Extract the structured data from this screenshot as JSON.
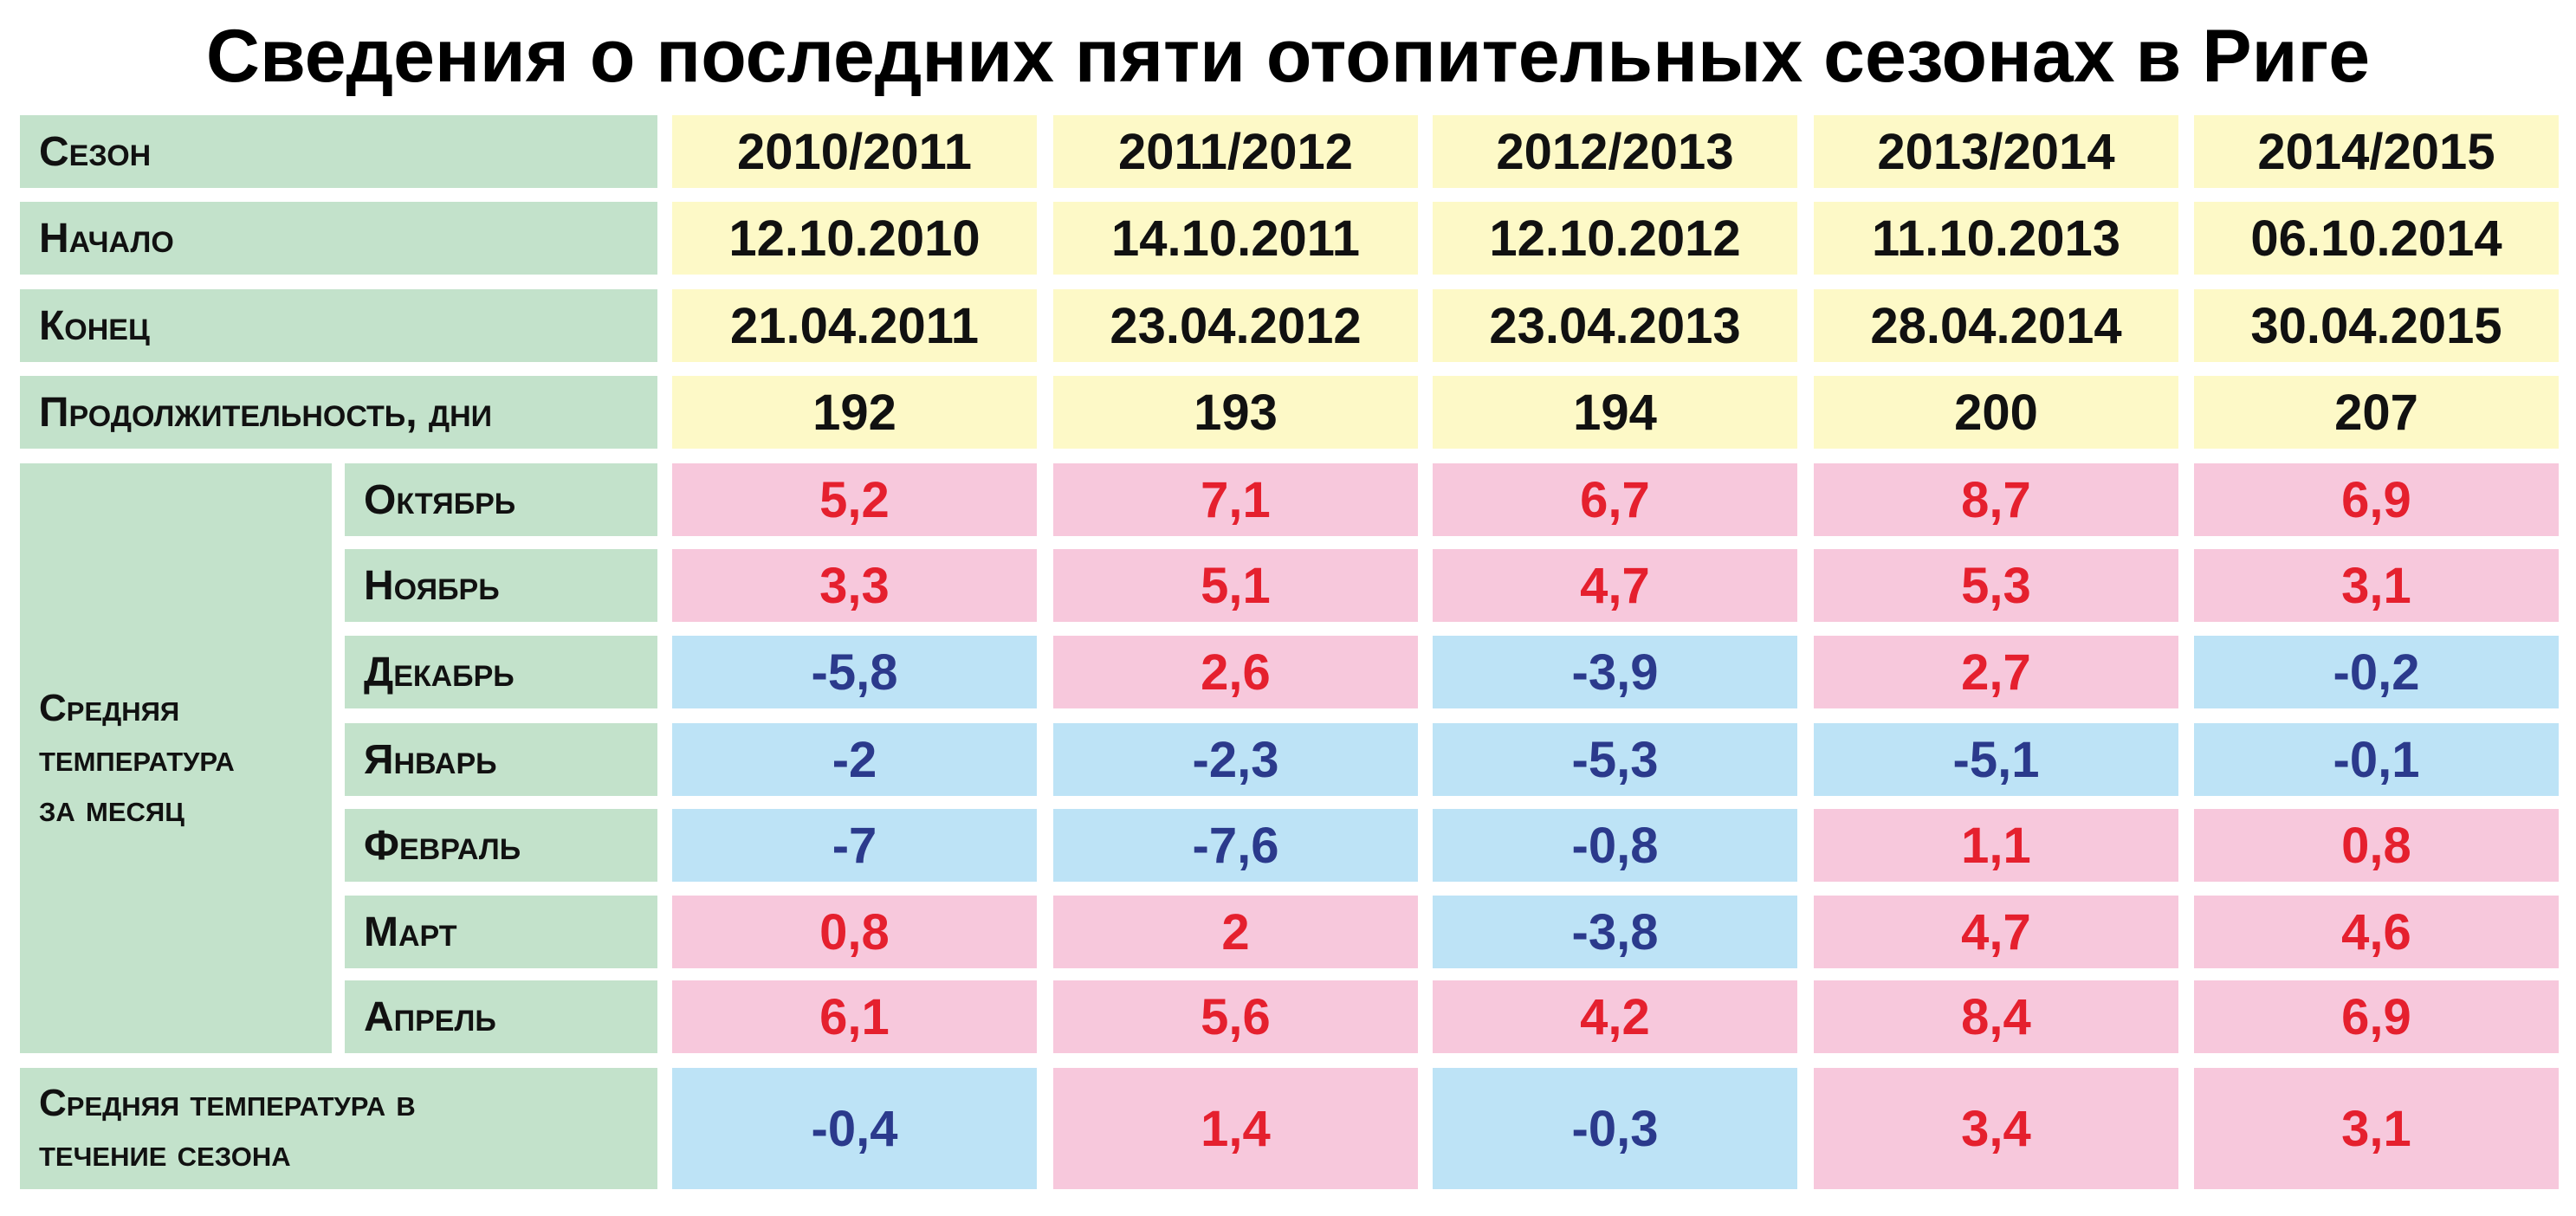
{
  "title": "Сведения о последних пяти отопительных сезонах в Риге",
  "table": {
    "header": {
      "label": "Сезон",
      "cells": [
        "2010/2011",
        "2011/2012",
        "2012/2013",
        "2013/2014",
        "2014/2015"
      ]
    },
    "rows": [
      {
        "label": "Начало",
        "cells": [
          "12.10.2010",
          "14.10.2011",
          "12.10.2012",
          "11.10.2013",
          "06.10.2014"
        ]
      },
      {
        "label": "Конец",
        "cells": [
          "21.04.2011",
          "23.04.2012",
          "23.04.2013",
          "28.04.2014",
          "30.04.2015"
        ]
      },
      {
        "label": "Продолжительность, дни",
        "cells": [
          "192",
          "193",
          "194",
          "200",
          "207"
        ]
      }
    ],
    "group": {
      "label": "Средняя температура за месяц",
      "rows": [
        {
          "label": "Октябрь",
          "cells": [
            "5,2",
            "7,1",
            "6,7",
            "8,7",
            "6,9"
          ]
        },
        {
          "label": "Ноябрь",
          "cells": [
            "3,3",
            "5,1",
            "4,7",
            "5,3",
            "3,1"
          ]
        },
        {
          "label": "Декабрь",
          "cells": [
            "-5,8",
            "2,6",
            "-3,9",
            "2,7",
            "-0,2"
          ]
        },
        {
          "label": "Январь",
          "cells": [
            "-2",
            "-2,3",
            "-5,3",
            "-5,1",
            "-0,1"
          ]
        },
        {
          "label": "Февраль",
          "cells": [
            "-7",
            "-7,6",
            "-0,8",
            "1,1",
            "0,8"
          ]
        },
        {
          "label": "Март",
          "cells": [
            "0,8",
            "2",
            "-3,8",
            "4,7",
            "4,6"
          ]
        },
        {
          "label": "Апрель",
          "cells": [
            "6,1",
            "5,6",
            "4,2",
            "8,4",
            "6,9"
          ]
        }
      ]
    },
    "footer": {
      "label": "Средняя температура в течение сезона",
      "cells": [
        "-0,4",
        "1,4",
        "-0,3",
        "3,4",
        "3,1"
      ]
    }
  }
}
